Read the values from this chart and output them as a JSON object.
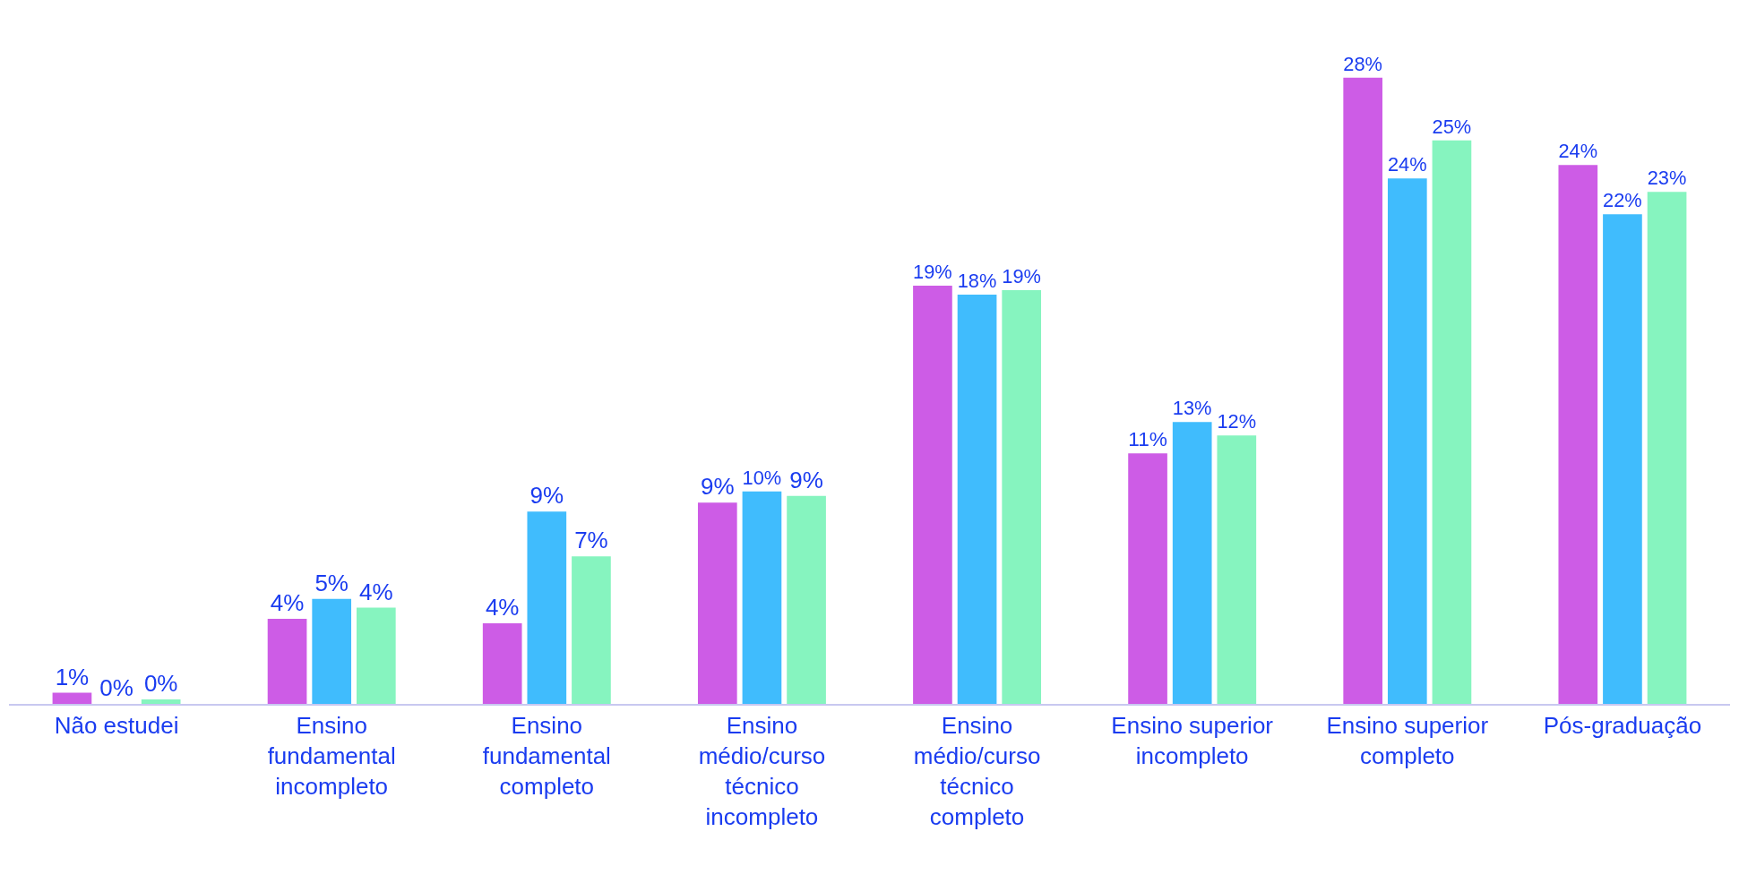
{
  "chart_data": {
    "type": "bar",
    "categories": [
      "Não estudei",
      "Ensino fundamental incompleto",
      "Ensino fundamental completo",
      "Ensino médio/curso técnico incompleto",
      "Ensino médio/curso técnico completo",
      "Ensino superior incompleto",
      "Ensino superior completo",
      "Pós-graduação"
    ],
    "series": [
      {
        "color": "#cd5ce6",
        "values": [
          0.5,
          3.8,
          3.6,
          9.0,
          18.7,
          11.2,
          28.0,
          24.1
        ],
        "value_labels": [
          "1%",
          "4%",
          "4%",
          "9%",
          "19%",
          "11%",
          "28%",
          "24%"
        ]
      },
      {
        "color": "#40bcfd",
        "values": [
          0,
          4.7,
          8.6,
          9.5,
          18.3,
          12.6,
          23.5,
          21.9
        ],
        "value_labels": [
          "0%",
          "5%",
          "9%",
          "10%",
          "18%",
          "13%",
          "24%",
          "22%"
        ]
      },
      {
        "color": "#86f4bf",
        "values": [
          0.2,
          4.3,
          6.6,
          9.3,
          18.5,
          12.0,
          25.2,
          22.9
        ],
        "value_labels": [
          "0%",
          "4%",
          "7%",
          "9%",
          "19%",
          "12%",
          "25%",
          "23%"
        ]
      }
    ],
    "grid": false,
    "legend": false
  }
}
